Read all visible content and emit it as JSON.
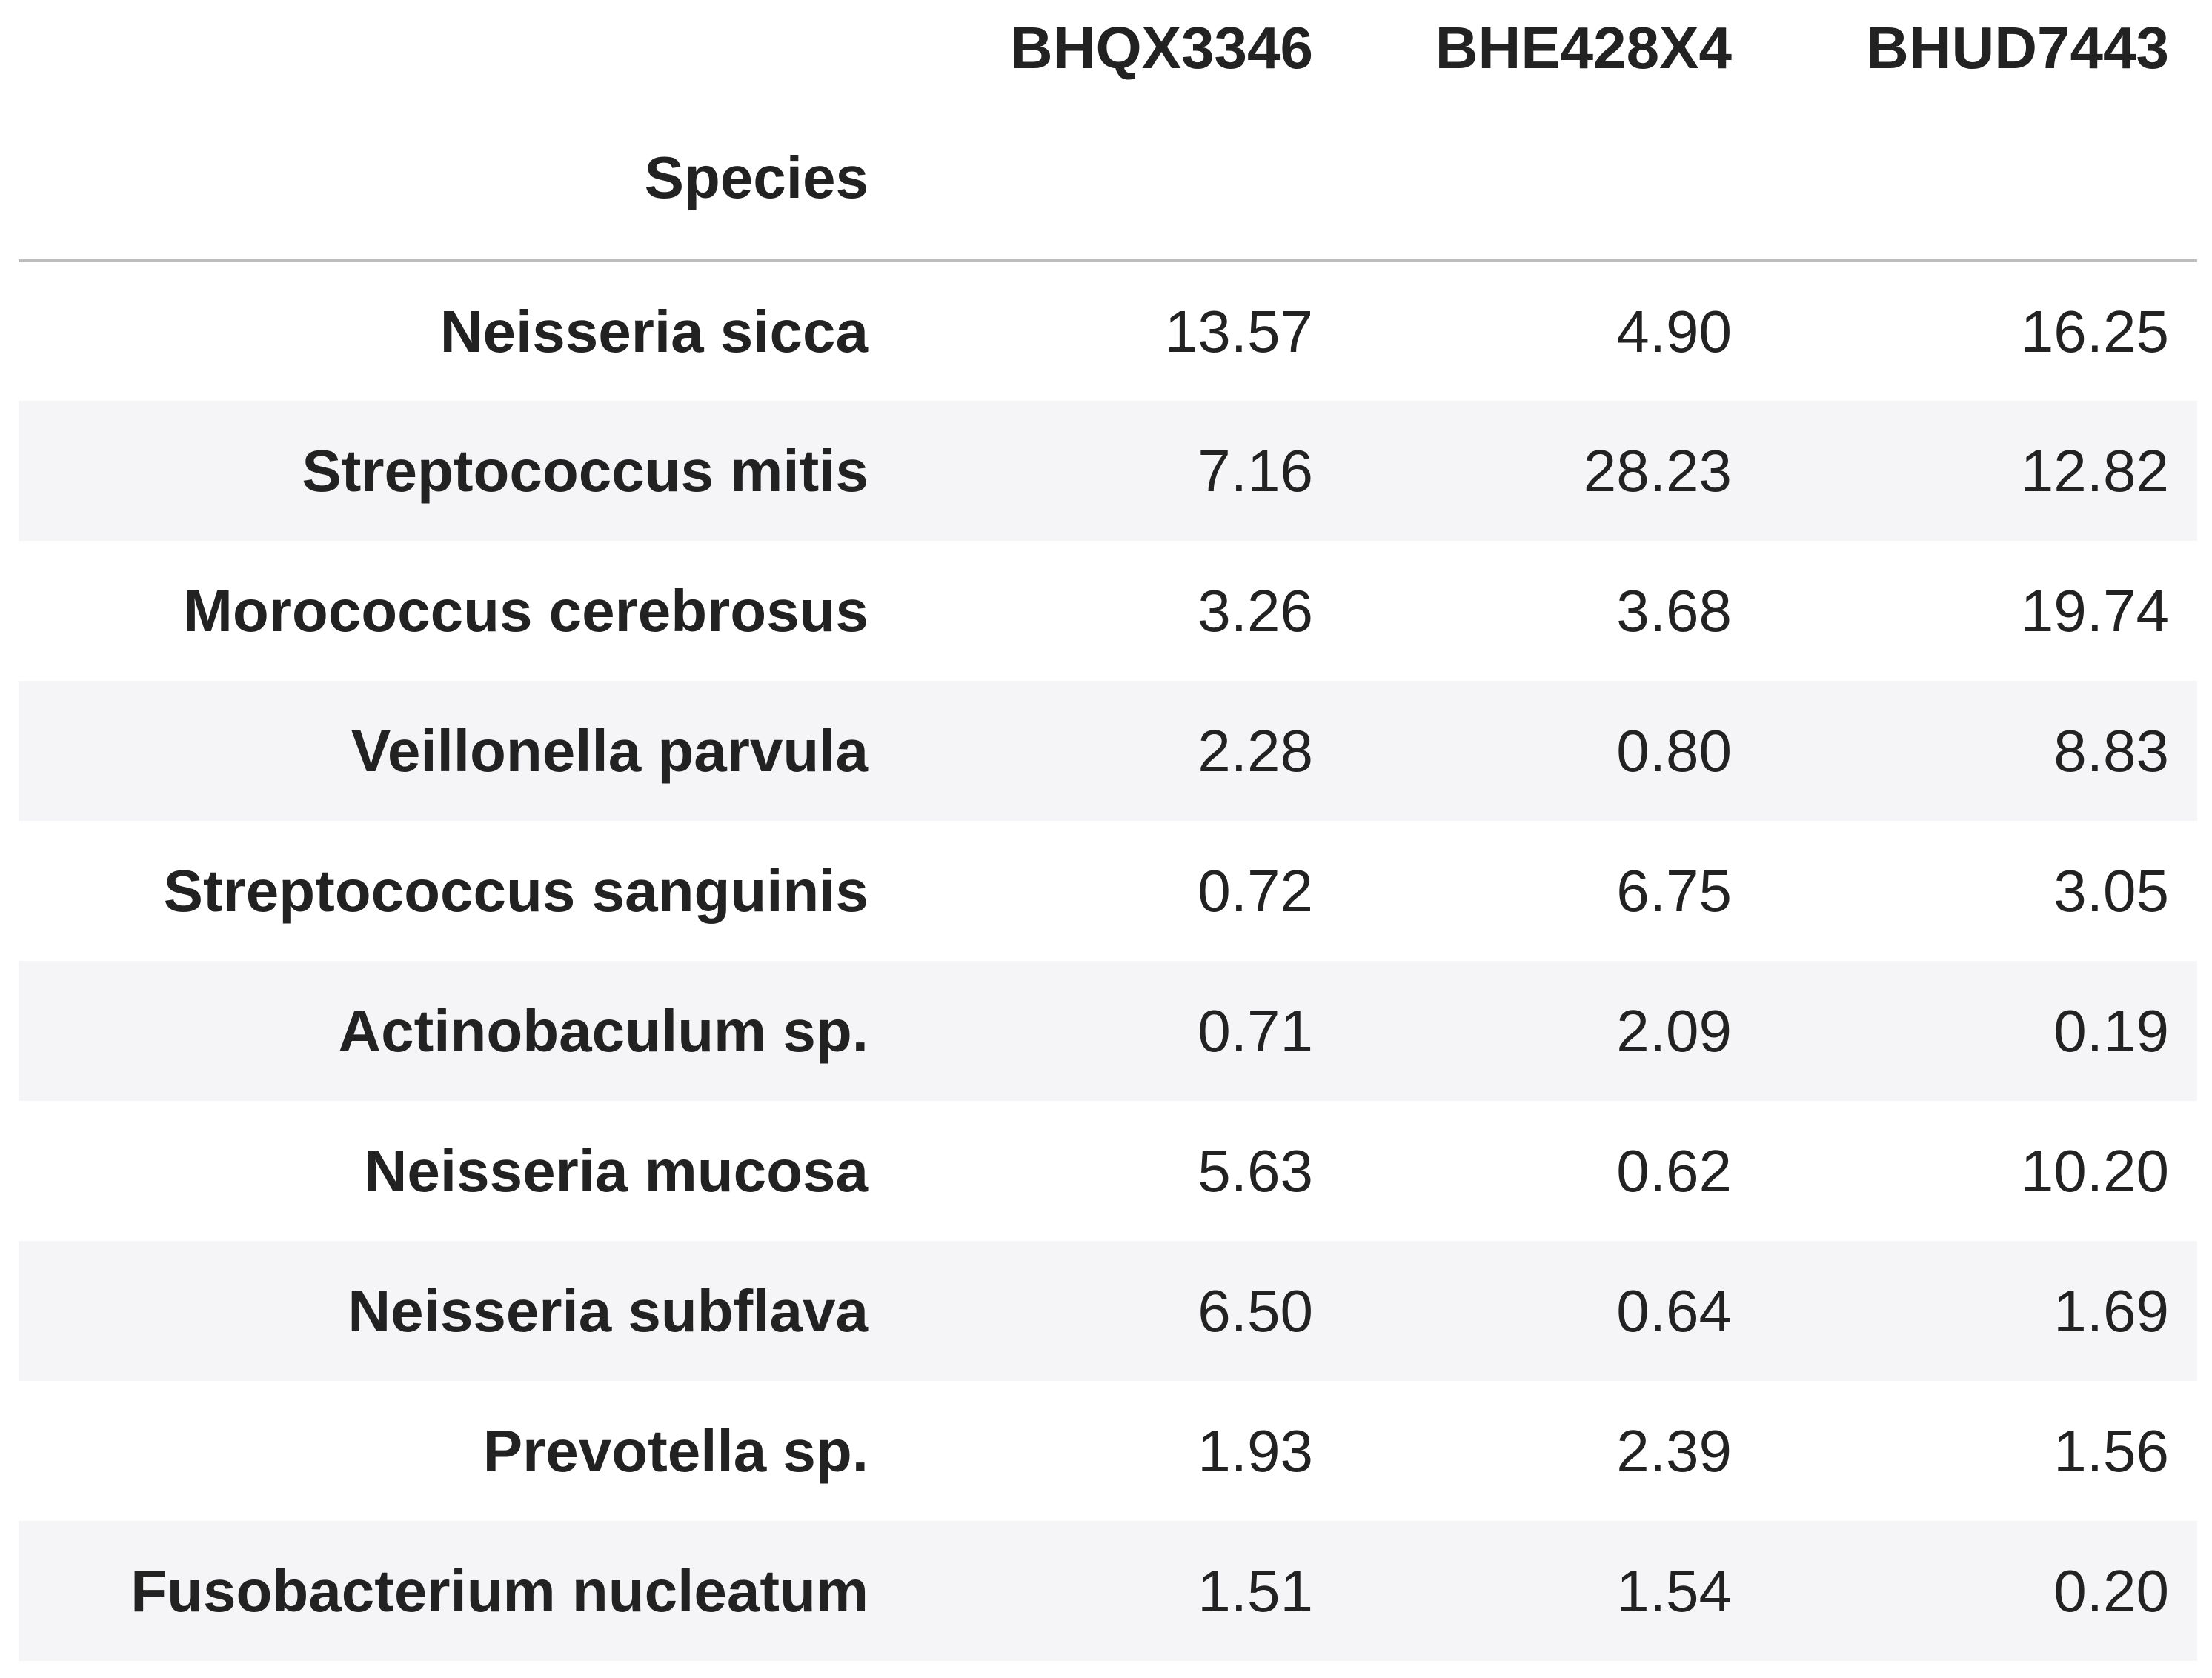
{
  "table": {
    "columns": [
      "BHQX3346",
      "BHE428X4",
      "BHUD7443"
    ],
    "index_name": "Species",
    "rows": [
      {
        "species": "Neisseria sicca",
        "values": [
          "13.57",
          "4.90",
          "16.25"
        ]
      },
      {
        "species": "Streptococcus mitis",
        "values": [
          "7.16",
          "28.23",
          "12.82"
        ]
      },
      {
        "species": "Morococcus cerebrosus",
        "values": [
          "3.26",
          "3.68",
          "19.74"
        ]
      },
      {
        "species": "Veillonella parvula",
        "values": [
          "2.28",
          "0.80",
          "8.83"
        ]
      },
      {
        "species": "Streptococcus sanguinis",
        "values": [
          "0.72",
          "6.75",
          "3.05"
        ]
      },
      {
        "species": "Actinobaculum sp.",
        "values": [
          "0.71",
          "2.09",
          "0.19"
        ]
      },
      {
        "species": "Neisseria mucosa",
        "values": [
          "5.63",
          "0.62",
          "10.20"
        ]
      },
      {
        "species": "Neisseria subflava",
        "values": [
          "6.50",
          "0.64",
          "1.69"
        ]
      },
      {
        "species": "Prevotella sp.",
        "values": [
          "1.93",
          "2.39",
          "1.56"
        ]
      },
      {
        "species": "Fusobacterium nucleatum",
        "values": [
          "1.51",
          "1.54",
          "0.20"
        ]
      }
    ]
  },
  "colors": {
    "text": "#222222",
    "stripe": "#f5f5f7",
    "header_rule": "#bdbdbd"
  }
}
